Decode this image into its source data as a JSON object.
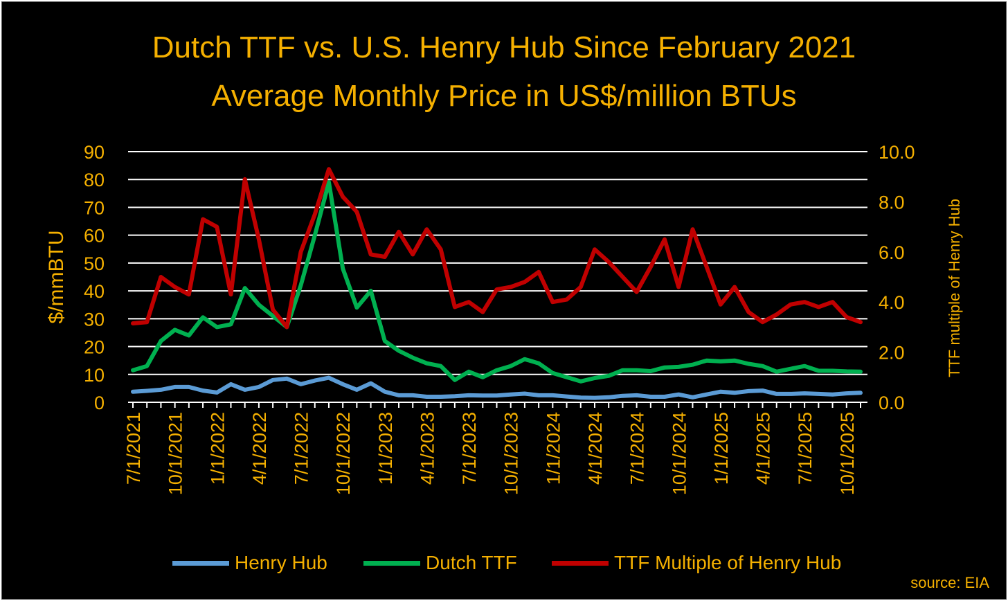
{
  "title_line1": "Dutch TTF vs. U.S. Henry Hub Since February 2021",
  "title_line2": "Average Monthly Price in US$/million BTUs",
  "source": "source: EIA",
  "colors": {
    "background": "#000000",
    "text": "#f5b000",
    "henry_hub": "#5b9bd5",
    "dutch_ttf": "#00b050",
    "multiple": "#c00000",
    "grid": "#ffffff"
  },
  "chart_data": {
    "type": "line",
    "ylabel_left": "$/mmBTU",
    "ylabel_right": "TTF multiple of Henry Hub",
    "ylim_left": [
      0,
      90
    ],
    "ylim_right": [
      0,
      10
    ],
    "yticks_left": [
      "0",
      "10",
      "20",
      "30",
      "40",
      "50",
      "60",
      "70",
      "80",
      "90"
    ],
    "yticks_right": [
      "0.0",
      "2.0",
      "4.0",
      "6.0",
      "8.0",
      "10.0"
    ],
    "x_tick_labels": [
      "7/1/2021",
      "10/1/2021",
      "1/1/2022",
      "4/1/2022",
      "7/1/2022",
      "10/1/2022",
      "1/1/2023",
      "4/1/2023",
      "7/1/2023",
      "10/1/2023",
      "1/1/2024",
      "4/1/2024",
      "7/1/2024",
      "10/1/2024",
      "1/1/2025",
      "4/1/2025",
      "7/1/2025",
      "10/1/2025"
    ],
    "grid": true,
    "legend_position": "bottom",
    "x": [
      "2021-07",
      "2021-08",
      "2021-09",
      "2021-10",
      "2021-11",
      "2021-12",
      "2022-01",
      "2022-02",
      "2022-03",
      "2022-04",
      "2022-05",
      "2022-06",
      "2022-07",
      "2022-08",
      "2022-09",
      "2022-10",
      "2022-11",
      "2022-12",
      "2023-01",
      "2023-02",
      "2023-03",
      "2023-04",
      "2023-05",
      "2023-06",
      "2023-07",
      "2023-08",
      "2023-09",
      "2023-10",
      "2023-11",
      "2023-12",
      "2024-01",
      "2024-02",
      "2024-03",
      "2024-04",
      "2024-05",
      "2024-06",
      "2024-07",
      "2024-08",
      "2024-09",
      "2024-10",
      "2024-11",
      "2024-12",
      "2025-01",
      "2025-02",
      "2025-03",
      "2025-04",
      "2025-05",
      "2025-06",
      "2025-07",
      "2025-08",
      "2025-09",
      "2025-10",
      "2025-11"
    ],
    "series": [
      {
        "name": "Henry Hub",
        "axis": "left",
        "color": "#5b9bd5",
        "values": [
          3.8,
          4.1,
          4.5,
          5.5,
          5.5,
          4.2,
          3.5,
          6.5,
          4.5,
          5.5,
          8.0,
          8.5,
          6.5,
          7.8,
          8.8,
          6.5,
          4.5,
          6.8,
          3.8,
          2.5,
          2.5,
          2.0,
          2.0,
          2.2,
          2.5,
          2.4,
          2.4,
          2.8,
          3.1,
          2.5,
          2.5,
          2.1,
          1.7,
          1.6,
          1.8,
          2.3,
          2.5,
          2.0,
          2.0,
          2.8,
          1.8,
          2.8,
          3.8,
          3.4,
          4.0,
          4.2,
          3.0,
          3.0,
          3.2,
          3.0,
          2.8,
          3.2,
          3.4
        ]
      },
      {
        "name": "Dutch TTF",
        "axis": "left",
        "color": "#00b050",
        "values": [
          11.5,
          13,
          22,
          26,
          24,
          30.5,
          27,
          28,
          41,
          35,
          31,
          27,
          42,
          60,
          79,
          48,
          34,
          40,
          22,
          18.5,
          16,
          14,
          13,
          8,
          11,
          9,
          11.5,
          13,
          15.5,
          14,
          10.5,
          9,
          7.5,
          8.7,
          9.5,
          11.5,
          11.5,
          11.2,
          12.5,
          12.7,
          13.5,
          15,
          14.7,
          15,
          13.8,
          13,
          11,
          12,
          13,
          11.3,
          11.3,
          11.1,
          11
        ]
      },
      {
        "name": "TTF Multiple of Henry Hub",
        "axis": "right",
        "color": "#c00000",
        "values": [
          3.15,
          3.2,
          5.0,
          4.6,
          4.3,
          7.3,
          7.0,
          4.3,
          8.9,
          6.5,
          3.7,
          3.0,
          6.0,
          7.5,
          9.3,
          8.2,
          7.6,
          5.9,
          5.8,
          6.8,
          5.9,
          6.9,
          6.1,
          3.8,
          4.0,
          3.6,
          4.5,
          4.6,
          4.8,
          5.2,
          4.0,
          4.1,
          4.6,
          6.1,
          5.6,
          5.0,
          4.4,
          5.4,
          6.5,
          4.6,
          6.9,
          5.4,
          3.9,
          4.6,
          3.6,
          3.2,
          3.5,
          3.9,
          4.0,
          3.8,
          4.0,
          3.4,
          3.2
        ]
      }
    ]
  }
}
